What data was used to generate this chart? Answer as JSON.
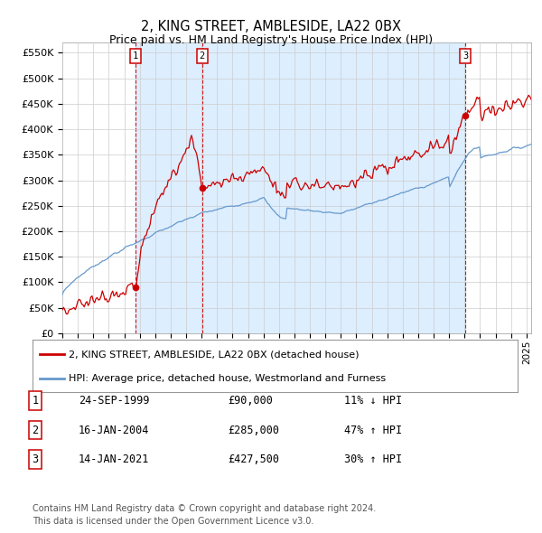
{
  "title": "2, KING STREET, AMBLESIDE, LA22 0BX",
  "subtitle": "Price paid vs. HM Land Registry's House Price Index (HPI)",
  "ylabel_ticks": [
    "£0",
    "£50K",
    "£100K",
    "£150K",
    "£200K",
    "£250K",
    "£300K",
    "£350K",
    "£400K",
    "£450K",
    "£500K",
    "£550K"
  ],
  "ytick_values": [
    0,
    50000,
    100000,
    150000,
    200000,
    250000,
    300000,
    350000,
    400000,
    450000,
    500000,
    550000
  ],
  "ylim": [
    0,
    570000
  ],
  "xlim_start": 1995.0,
  "xlim_end": 2025.3,
  "sale_dates": [
    1999.73,
    2004.04,
    2021.04
  ],
  "sale_prices": [
    90000,
    285000,
    427500
  ],
  "sale_labels": [
    "1",
    "2",
    "3"
  ],
  "legend_line1": "2, KING STREET, AMBLESIDE, LA22 0BX (detached house)",
  "legend_line2": "HPI: Average price, detached house, Westmorland and Furness",
  "table_data": [
    [
      "1",
      "24-SEP-1999",
      "£90,000",
      "11% ↓ HPI"
    ],
    [
      "2",
      "16-JAN-2004",
      "£285,000",
      "47% ↑ HPI"
    ],
    [
      "3",
      "14-JAN-2021",
      "£427,500",
      "30% ↑ HPI"
    ]
  ],
  "footnote1": "Contains HM Land Registry data © Crown copyright and database right 2024.",
  "footnote2": "This data is licensed under the Open Government Licence v3.0.",
  "line_color_red": "#cc0000",
  "line_color_blue": "#6699cc",
  "fill_color_blue": "#ddeeff",
  "background_color": "#ffffff",
  "grid_color": "#cccccc"
}
